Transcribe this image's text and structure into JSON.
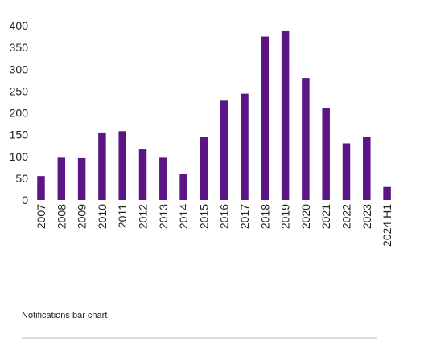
{
  "caption": "Notifications bar chart",
  "chart_data": {
    "type": "bar",
    "title": "",
    "xlabel": "",
    "ylabel": "",
    "ylim": [
      0,
      400
    ],
    "yticks": [
      0,
      50,
      100,
      150,
      200,
      250,
      300,
      350,
      400
    ],
    "grid": false,
    "legend": "none",
    "bar_color": "#5b1585",
    "categories": [
      "2007",
      "2008",
      "2009",
      "2010",
      "2011",
      "2012",
      "2013",
      "2014",
      "2015",
      "2016",
      "2017",
      "2018",
      "2019",
      "2020",
      "2021",
      "2022",
      "2023",
      "2024 H1"
    ],
    "values": [
      55,
      97,
      96,
      155,
      158,
      116,
      97,
      60,
      144,
      228,
      244,
      375,
      389,
      280,
      211,
      130,
      144,
      30
    ]
  }
}
